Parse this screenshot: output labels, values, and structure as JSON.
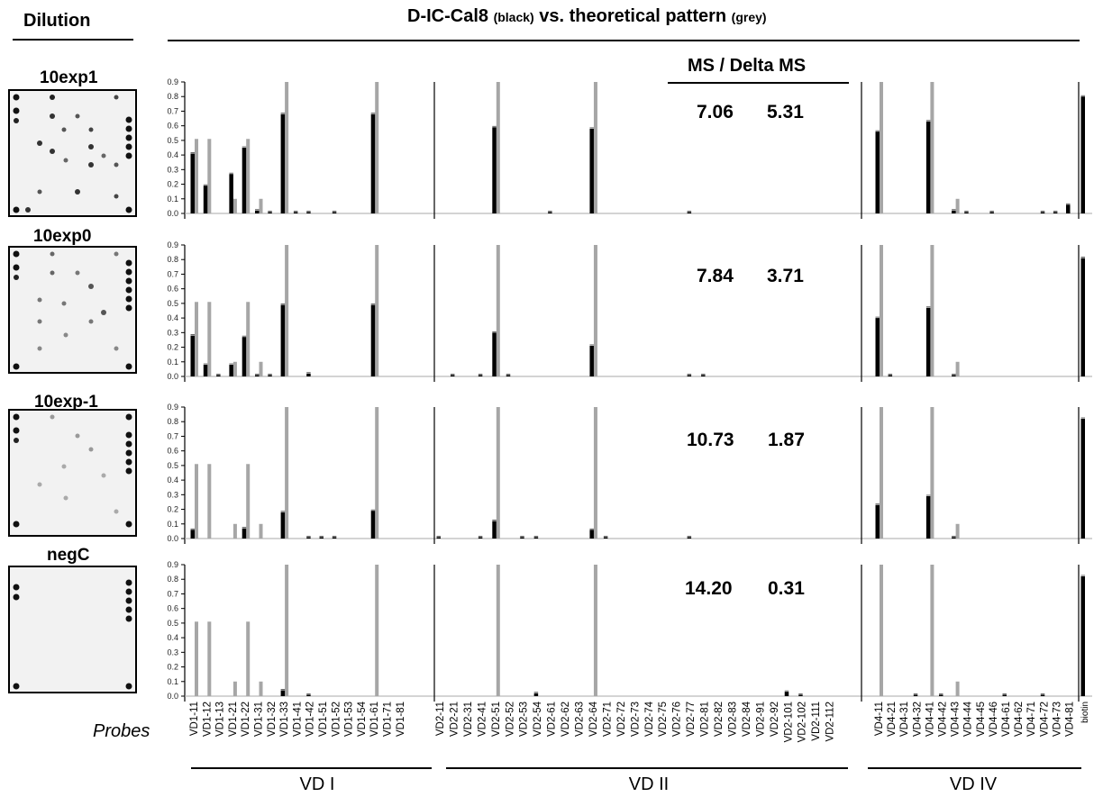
{
  "header": {
    "dilution_label": "Dilution",
    "title_main1": "D-IC-Cal8 ",
    "title_small1": "(black)",
    "title_main2": " vs. theoretical pattern ",
    "title_small2": "(grey)"
  },
  "ms_header": "MS / Delta MS",
  "probes_label": "Probes",
  "colors": {
    "measured": "#000000",
    "theoretical": "#a6a6a6"
  },
  "chart_data": {
    "type": "bar",
    "ylim": [
      0,
      0.9
    ],
    "yticks": [
      "0.0",
      "0.1",
      "0.2",
      "0.3",
      "0.4",
      "0.5",
      "0.6",
      "0.7",
      "0.8",
      "0.9"
    ],
    "categories": [
      "VD1-11",
      "VD1-12",
      "VD1-13",
      "VD1-21",
      "VD1-22",
      "VD1-31",
      "VD1-32",
      "VD1-33",
      "VD1-41",
      "VD1-42",
      "VD1-51",
      "VD1-52",
      "VD1-53",
      "VD1-54",
      "VD1-61",
      "VD1-71",
      "VD1-81",
      "VD2-11",
      "VD2-21",
      "VD2-31",
      "VD2-41",
      "VD2-51",
      "VD2-52",
      "VD2-53",
      "VD2-54",
      "VD2-61",
      "VD2-62",
      "VD2-63",
      "VD2-64",
      "VD2-71",
      "VD2-72",
      "VD2-73",
      "VD2-74",
      "VD2-75",
      "VD2-76",
      "VD2-77",
      "VD2-81",
      "VD2-82",
      "VD2-83",
      "VD2-84",
      "VD2-91",
      "VD2-92",
      "VD2-101",
      "VD2-102",
      "VD2-111",
      "VD2-112",
      "VD4-11",
      "VD4-21",
      "VD4-31",
      "VD4-32",
      "VD4-41",
      "VD4-42",
      "VD4-43",
      "VD4-44",
      "VD4-45",
      "VD4-46",
      "VD4-61",
      "VD4-62",
      "VD4-71",
      "VD4-72",
      "VD4-73",
      "VD4-81",
      "biotin"
    ],
    "groups": [
      {
        "label": "VD I",
        "start": 0,
        "end": 16
      },
      {
        "label": "VD II",
        "start": 17,
        "end": 45
      },
      {
        "label": "VD IV",
        "start": 46,
        "end": 61
      }
    ],
    "theoretical": [
      0.51,
      0.51,
      0,
      0.1,
      0.51,
      0.1,
      0,
      0.9,
      0,
      0,
      0,
      0,
      0,
      0,
      0.9,
      0,
      0,
      0,
      0,
      0,
      0,
      0.9,
      0,
      0,
      0,
      0,
      0,
      0,
      0.9,
      0,
      0,
      0,
      0,
      0,
      0,
      0,
      0,
      0,
      0,
      0,
      0,
      0,
      0,
      0,
      0,
      0,
      0.9,
      0,
      0,
      0,
      0.9,
      0,
      0.1,
      0,
      0,
      0,
      0,
      0,
      0,
      0,
      0,
      0,
      0
    ],
    "panels": [
      {
        "dilution": "10exp1",
        "ms": "7.06",
        "delta_ms": "5.31",
        "measured": [
          0.41,
          0.19,
          0,
          0.27,
          0.45,
          0.02,
          0.01,
          0.68,
          0.01,
          0.01,
          0,
          0.01,
          0,
          0,
          0.68,
          0,
          0,
          0,
          0,
          0,
          0,
          0.59,
          0,
          0,
          0,
          0.01,
          0,
          0,
          0.58,
          0,
          0,
          0,
          0,
          0,
          0,
          0.01,
          0,
          0,
          0,
          0,
          0,
          0,
          0,
          0,
          0,
          0,
          0.56,
          0,
          0,
          0,
          0.63,
          0,
          0.02,
          0.01,
          0,
          0.01,
          0,
          0,
          0,
          0.01,
          0.01,
          0.06,
          0.8
        ]
      },
      {
        "dilution": "10exp0",
        "ms": "7.84",
        "delta_ms": "3.71",
        "measured": [
          0.28,
          0.08,
          0.01,
          0.08,
          0.27,
          0.01,
          0.01,
          0.49,
          0,
          0.02,
          0,
          0,
          0,
          0,
          0.49,
          0,
          0,
          0,
          0.01,
          0,
          0.01,
          0.3,
          0.01,
          0,
          0,
          0,
          0,
          0,
          0.21,
          0,
          0,
          0,
          0,
          0,
          0,
          0.01,
          0.01,
          0,
          0,
          0,
          0,
          0,
          0,
          0,
          0,
          0,
          0.4,
          0.01,
          0,
          0,
          0.47,
          0,
          0.01,
          0,
          0,
          0,
          0,
          0,
          0,
          0,
          0,
          0,
          0.81
        ]
      },
      {
        "dilution": "10exp-1",
        "ms": "10.73",
        "delta_ms": "1.87",
        "measured": [
          0.06,
          0,
          0,
          0,
          0.07,
          0,
          0,
          0.18,
          0,
          0.01,
          0.01,
          0.01,
          0,
          0,
          0.19,
          0,
          0,
          0.01,
          0,
          0,
          0.01,
          0.12,
          0,
          0.01,
          0.01,
          0,
          0,
          0,
          0.06,
          0.01,
          0,
          0,
          0,
          0,
          0,
          0.01,
          0,
          0,
          0,
          0,
          0,
          0,
          0,
          0,
          0,
          0,
          0.23,
          0,
          0,
          0,
          0.29,
          0,
          0.01,
          0,
          0,
          0,
          0,
          0,
          0,
          0,
          0,
          0,
          0.82
        ]
      },
      {
        "dilution": "negC",
        "ms": "14.20",
        "delta_ms": "0.31",
        "measured": [
          0,
          0,
          0,
          0,
          0,
          0,
          0,
          0.04,
          0,
          0.01,
          0,
          0,
          0,
          0,
          0,
          0,
          0,
          0,
          0,
          0,
          0,
          0,
          0,
          0,
          0.02,
          0,
          0,
          0,
          0,
          0,
          0,
          0,
          0,
          0,
          0,
          0,
          0,
          0,
          0,
          0,
          0,
          0,
          0.03,
          0.01,
          0,
          0,
          0,
          0,
          0,
          0.01,
          0,
          0.01,
          0,
          0,
          0,
          0,
          0.01,
          0,
          0,
          0.01,
          0,
          0,
          0.82
        ]
      }
    ]
  }
}
